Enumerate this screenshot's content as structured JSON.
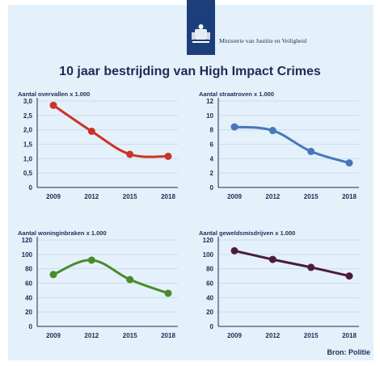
{
  "header": {
    "ministry_name": "Ministerie van Justitie en Veiligheid",
    "title": "10 jaar bestrijding van High Impact Crimes"
  },
  "source": "Bron: Politie",
  "chart_data": [
    {
      "type": "line",
      "title": "Aantal overvallen x 1.000",
      "x": [
        "2009",
        "2012",
        "2015",
        "2018"
      ],
      "y_ticks": [
        "0",
        "0,5",
        "1,0",
        "1,5",
        "2,0",
        "2,5",
        "3,0"
      ],
      "ylim": [
        0,
        3
      ],
      "values": [
        2.85,
        1.95,
        1.15,
        1.08
      ],
      "color": "#cc3327",
      "grid": true
    },
    {
      "type": "line",
      "title": "Aantal straatroven x 1.000",
      "x": [
        "2009",
        "2012",
        "2015",
        "2018"
      ],
      "y_ticks": [
        "0",
        "2",
        "4",
        "6",
        "8",
        "10",
        "12"
      ],
      "ylim": [
        0,
        12
      ],
      "values": [
        8.4,
        7.9,
        5.0,
        3.4
      ],
      "color": "#4677b9",
      "grid": true
    },
    {
      "type": "line",
      "title": "Aantal woninginbraken x 1.000",
      "x": [
        "2009",
        "2012",
        "2015",
        "2018"
      ],
      "y_ticks": [
        "0",
        "20",
        "40",
        "60",
        "80",
        "100",
        "120"
      ],
      "ylim": [
        0,
        120
      ],
      "values": [
        72,
        92,
        65,
        46
      ],
      "color": "#4b8a2c",
      "grid": true
    },
    {
      "type": "line",
      "title": "Aantal geweldsmisdrijven x 1.000",
      "x": [
        "2009",
        "2012",
        "2015",
        "2018"
      ],
      "y_ticks": [
        "0",
        "20",
        "40",
        "60",
        "80",
        "100",
        "120"
      ],
      "ylim": [
        0,
        120
      ],
      "values": [
        105,
        93,
        82,
        70
      ],
      "color": "#4a1d3a",
      "grid": true
    }
  ]
}
